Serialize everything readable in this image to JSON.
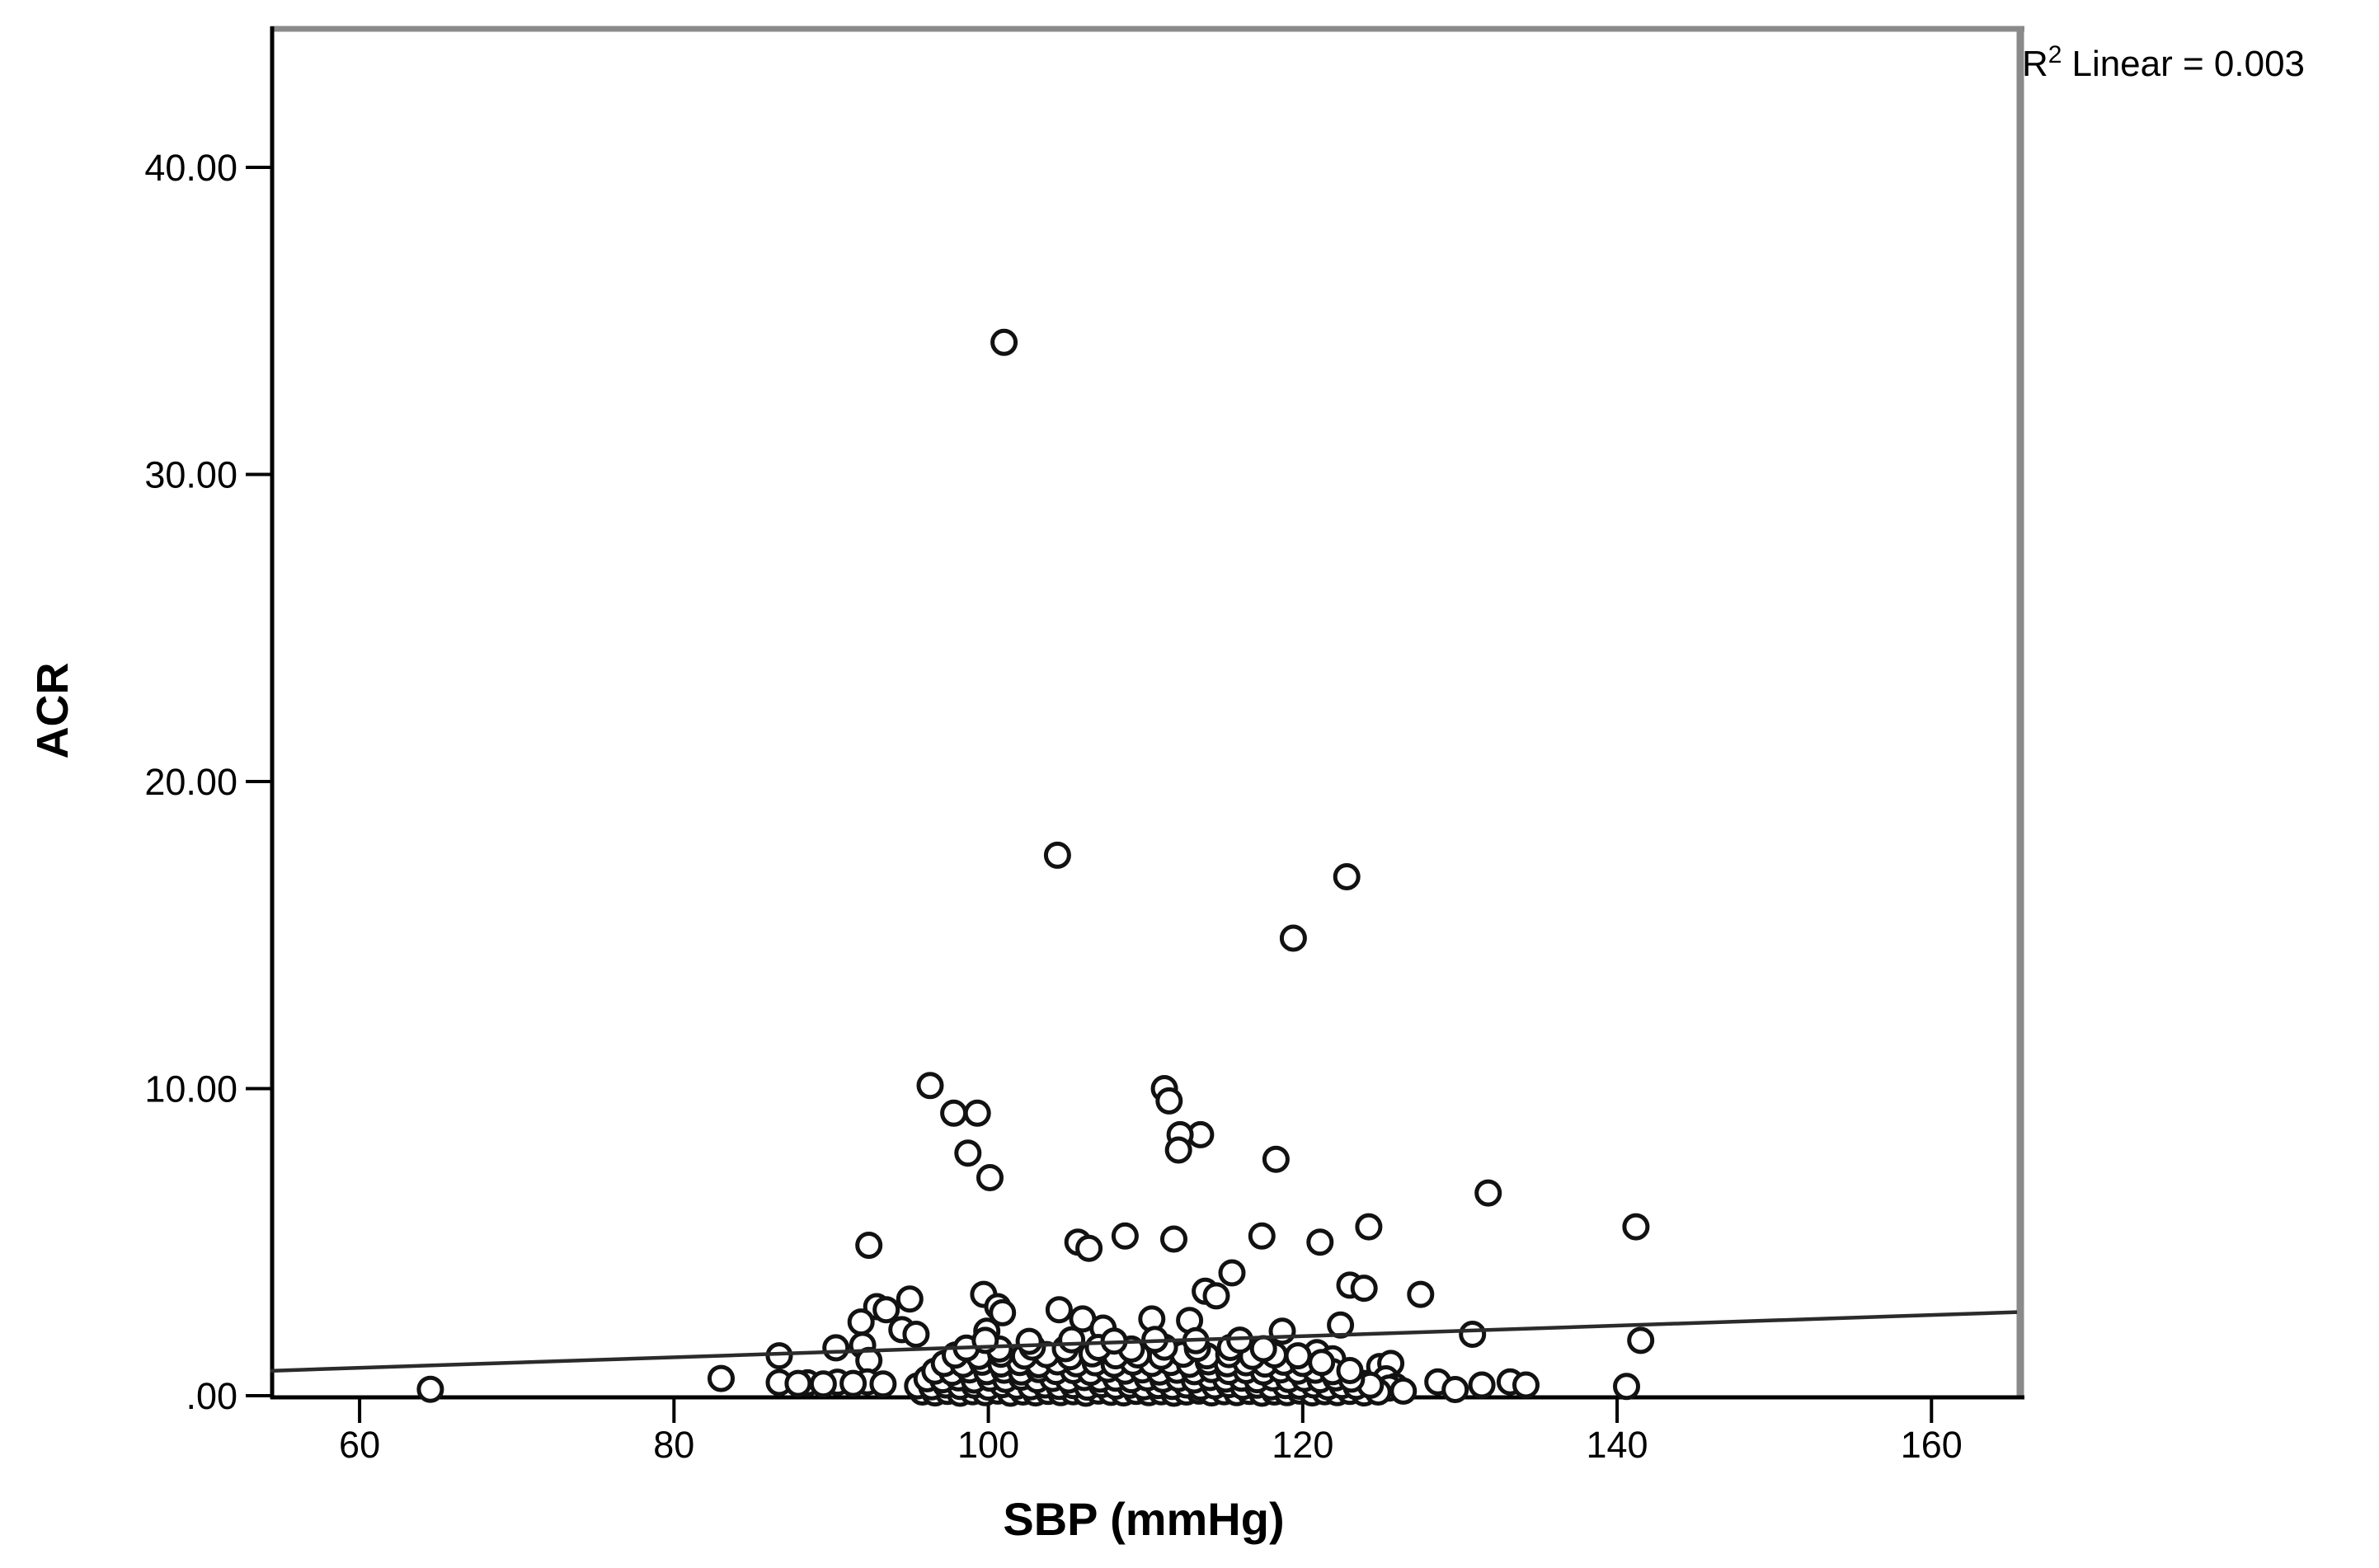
{
  "annotation": {
    "prefix": "R",
    "superscript": "2",
    "rest": "Linear = 0.003"
  },
  "colors": {
    "background": "#ffffff",
    "axis_black": "#000000",
    "frame_gray": "#8a8a8a",
    "marker_stroke": "#121212",
    "marker_fill": "#ffffff",
    "fit_line": "#2b2b2b",
    "text": "#000000"
  },
  "chart_data": {
    "type": "scatter",
    "title": "",
    "xlabel": "SBP (mmHg)",
    "ylabel": "ACR",
    "x_ticks": [
      60,
      80,
      100,
      120,
      140,
      160
    ],
    "x_tick_labels": [
      "60",
      "80",
      "100",
      "120",
      "140",
      "160"
    ],
    "y_ticks": [
      0,
      10,
      20,
      30,
      40
    ],
    "y_tick_labels": [
      ".00",
      "10.00",
      "20.00",
      "30.00",
      "40.00"
    ],
    "xlim": [
      54.33,
      165.44
    ],
    "ylim": [
      0,
      44.59
    ],
    "grid": false,
    "legend": "none",
    "r2_linear": 0.003,
    "fit_line": {
      "x1": 54.33,
      "y1": 0.81,
      "x2": 165.44,
      "y2": 2.72
    },
    "marker": {
      "shape": "open-circle",
      "radius_px": 14,
      "stroke_px": 5
    },
    "points": [
      [
        101.0,
        34.3
      ],
      [
        104.4,
        17.6
      ],
      [
        122.8,
        16.9
      ],
      [
        119.4,
        14.9
      ],
      [
        96.3,
        10.1
      ],
      [
        111.2,
        10.0
      ],
      [
        111.5,
        9.6
      ],
      [
        99.3,
        9.2
      ],
      [
        97.8,
        9.2
      ],
      [
        113.5,
        8.5
      ],
      [
        112.2,
        8.5
      ],
      [
        112.1,
        8.0
      ],
      [
        98.7,
        7.9
      ],
      [
        118.3,
        7.7
      ],
      [
        100.1,
        7.1
      ],
      [
        131.8,
        6.6
      ],
      [
        124.2,
        5.5
      ],
      [
        141.2,
        5.5
      ],
      [
        108.7,
        5.2
      ],
      [
        117.4,
        5.2
      ],
      [
        111.8,
        5.1
      ],
      [
        105.7,
        5.0
      ],
      [
        121.1,
        5.0
      ],
      [
        92.4,
        4.9
      ],
      [
        106.4,
        4.8
      ],
      [
        115.5,
        4.0
      ],
      [
        123.0,
        3.6
      ],
      [
        123.9,
        3.5
      ],
      [
        113.8,
        3.4
      ],
      [
        127.5,
        3.3
      ],
      [
        99.7,
        3.3
      ],
      [
        114.5,
        3.25
      ],
      [
        95.0,
        3.15
      ],
      [
        92.9,
        2.9
      ],
      [
        100.6,
        2.9
      ],
      [
        104.5,
        2.8
      ],
      [
        93.5,
        2.8
      ],
      [
        100.9,
        2.7
      ],
      [
        106.0,
        2.5
      ],
      [
        110.4,
        2.5
      ],
      [
        112.8,
        2.45
      ],
      [
        91.9,
        2.4
      ],
      [
        122.4,
        2.3
      ],
      [
        107.3,
        2.2
      ],
      [
        94.5,
        2.15
      ],
      [
        118.7,
        2.1
      ],
      [
        99.9,
        2.1
      ],
      [
        95.4,
        2.0
      ],
      [
        130.8,
        2.0
      ],
      [
        141.5,
        1.8
      ],
      [
        92.0,
        1.64
      ],
      [
        90.3,
        1.56
      ],
      [
        120.9,
        1.4
      ],
      [
        86.7,
        1.3
      ],
      [
        121.9,
        1.2
      ],
      [
        92.4,
        1.15
      ],
      [
        124.9,
        0.95
      ],
      [
        125.6,
        1.05
      ],
      [
        122.7,
        0.7
      ],
      [
        83.0,
        0.56
      ],
      [
        125.3,
        0.55
      ],
      [
        128.6,
        0.45
      ],
      [
        133.2,
        0.45
      ],
      [
        92.3,
        0.45
      ],
      [
        90.4,
        0.44
      ],
      [
        86.7,
        0.43
      ],
      [
        88.5,
        0.42
      ],
      [
        91.4,
        0.4
      ],
      [
        87.9,
        0.4
      ],
      [
        123.9,
        0.4
      ],
      [
        93.3,
        0.38
      ],
      [
        89.5,
        0.38
      ],
      [
        131.4,
        0.35
      ],
      [
        134.2,
        0.35
      ],
      [
        140.6,
        0.3
      ],
      [
        125.9,
        0.3
      ],
      [
        125.5,
        0.25
      ],
      [
        64.5,
        0.21
      ],
      [
        129.7,
        0.2
      ],
      [
        126.4,
        0.15
      ],
      [
        95.8,
        0.12
      ],
      [
        96.6,
        0.09
      ],
      [
        97.4,
        0.14
      ],
      [
        98.2,
        0.08
      ],
      [
        99.0,
        0.13
      ],
      [
        99.8,
        0.1
      ],
      [
        100.6,
        0.15
      ],
      [
        101.4,
        0.08
      ],
      [
        102.2,
        0.12
      ],
      [
        103.0,
        0.09
      ],
      [
        103.8,
        0.14
      ],
      [
        104.6,
        0.1
      ],
      [
        105.4,
        0.13
      ],
      [
        106.2,
        0.08
      ],
      [
        107.0,
        0.15
      ],
      [
        107.8,
        0.11
      ],
      [
        108.6,
        0.09
      ],
      [
        109.4,
        0.14
      ],
      [
        110.2,
        0.1
      ],
      [
        111.0,
        0.13
      ],
      [
        111.8,
        0.08
      ],
      [
        112.6,
        0.12
      ],
      [
        113.4,
        0.15
      ],
      [
        114.2,
        0.09
      ],
      [
        115.0,
        0.13
      ],
      [
        115.8,
        0.1
      ],
      [
        116.6,
        0.14
      ],
      [
        117.4,
        0.08
      ],
      [
        118.2,
        0.12
      ],
      [
        119.0,
        0.1
      ],
      [
        119.8,
        0.15
      ],
      [
        120.6,
        0.09
      ],
      [
        121.4,
        0.13
      ],
      [
        122.2,
        0.1
      ],
      [
        123.0,
        0.14
      ],
      [
        123.9,
        0.09
      ],
      [
        124.8,
        0.12
      ],
      [
        95.5,
        0.32
      ],
      [
        96.4,
        0.29
      ],
      [
        97.3,
        0.35
      ],
      [
        98.2,
        0.3
      ],
      [
        99.1,
        0.34
      ],
      [
        100.0,
        0.28
      ],
      [
        100.9,
        0.36
      ],
      [
        101.8,
        0.31
      ],
      [
        102.7,
        0.29
      ],
      [
        103.6,
        0.35
      ],
      [
        104.5,
        0.3
      ],
      [
        105.4,
        0.33
      ],
      [
        106.3,
        0.28
      ],
      [
        107.2,
        0.36
      ],
      [
        108.1,
        0.31
      ],
      [
        109.0,
        0.34
      ],
      [
        109.9,
        0.29
      ],
      [
        110.8,
        0.33
      ],
      [
        111.7,
        0.3
      ],
      [
        112.6,
        0.35
      ],
      [
        113.5,
        0.28
      ],
      [
        114.4,
        0.32
      ],
      [
        115.3,
        0.36
      ],
      [
        116.2,
        0.3
      ],
      [
        117.1,
        0.34
      ],
      [
        118.0,
        0.29
      ],
      [
        118.9,
        0.33
      ],
      [
        119.8,
        0.31
      ],
      [
        120.7,
        0.35
      ],
      [
        121.6,
        0.29
      ],
      [
        122.5,
        0.33
      ],
      [
        123.4,
        0.3
      ],
      [
        124.3,
        0.34
      ],
      [
        96.1,
        0.55
      ],
      [
        97.1,
        0.52
      ],
      [
        98.1,
        0.58
      ],
      [
        99.1,
        0.51
      ],
      [
        100.1,
        0.57
      ],
      [
        101.1,
        0.53
      ],
      [
        102.1,
        0.6
      ],
      [
        103.1,
        0.52
      ],
      [
        104.1,
        0.56
      ],
      [
        105.1,
        0.51
      ],
      [
        106.1,
        0.59
      ],
      [
        107.1,
        0.54
      ],
      [
        108.1,
        0.57
      ],
      [
        109.1,
        0.52
      ],
      [
        110.1,
        0.58
      ],
      [
        111.1,
        0.53
      ],
      [
        112.1,
        0.56
      ],
      [
        113.1,
        0.51
      ],
      [
        114.1,
        0.59
      ],
      [
        115.1,
        0.54
      ],
      [
        116.1,
        0.57
      ],
      [
        117.1,
        0.52
      ],
      [
        118.1,
        0.58
      ],
      [
        119.1,
        0.53
      ],
      [
        120.1,
        0.56
      ],
      [
        121.1,
        0.52
      ],
      [
        122.1,
        0.58
      ],
      [
        123.1,
        0.54
      ],
      [
        96.6,
        0.8
      ],
      [
        97.7,
        0.76
      ],
      [
        98.8,
        0.84
      ],
      [
        99.9,
        0.78
      ],
      [
        101.0,
        0.83
      ],
      [
        102.1,
        0.77
      ],
      [
        103.2,
        0.85
      ],
      [
        104.3,
        0.79
      ],
      [
        105.4,
        0.82
      ],
      [
        106.5,
        0.76
      ],
      [
        107.6,
        0.86
      ],
      [
        108.7,
        0.8
      ],
      [
        109.8,
        0.84
      ],
      [
        110.9,
        0.77
      ],
      [
        112.0,
        0.83
      ],
      [
        113.1,
        0.78
      ],
      [
        114.2,
        0.85
      ],
      [
        115.3,
        0.79
      ],
      [
        116.4,
        0.82
      ],
      [
        117.5,
        0.77
      ],
      [
        118.6,
        0.84
      ],
      [
        119.7,
        0.8
      ],
      [
        120.8,
        0.83
      ],
      [
        121.9,
        0.78
      ],
      [
        123.0,
        0.82
      ],
      [
        97.2,
        1.05
      ],
      [
        98.4,
        1.02
      ],
      [
        99.6,
        1.09
      ],
      [
        100.8,
        1.03
      ],
      [
        102.0,
        1.08
      ],
      [
        103.2,
        1.01
      ],
      [
        104.4,
        1.1
      ],
      [
        105.6,
        1.04
      ],
      [
        106.8,
        1.07
      ],
      [
        108.0,
        1.02
      ],
      [
        109.2,
        1.09
      ],
      [
        110.4,
        1.05
      ],
      [
        111.6,
        1.08
      ],
      [
        112.8,
        1.02
      ],
      [
        114.0,
        1.1
      ],
      [
        115.2,
        1.04
      ],
      [
        116.4,
        1.07
      ],
      [
        117.6,
        1.03
      ],
      [
        118.8,
        1.09
      ],
      [
        120.0,
        1.05
      ],
      [
        121.2,
        1.08
      ],
      [
        97.9,
        1.32
      ],
      [
        99.4,
        1.28
      ],
      [
        100.8,
        1.35
      ],
      [
        102.3,
        1.29
      ],
      [
        103.7,
        1.34
      ],
      [
        105.2,
        1.27
      ],
      [
        106.6,
        1.36
      ],
      [
        108.1,
        1.3
      ],
      [
        109.5,
        1.33
      ],
      [
        111.0,
        1.28
      ],
      [
        112.4,
        1.35
      ],
      [
        113.9,
        1.3
      ],
      [
        115.3,
        1.34
      ],
      [
        116.8,
        1.28
      ],
      [
        118.2,
        1.33
      ],
      [
        119.7,
        1.3
      ],
      [
        98.6,
        1.55
      ],
      [
        100.7,
        1.52
      ],
      [
        102.8,
        1.58
      ],
      [
        104.9,
        1.53
      ],
      [
        107.0,
        1.57
      ],
      [
        109.1,
        1.52
      ],
      [
        111.2,
        1.58
      ],
      [
        113.3,
        1.54
      ],
      [
        115.4,
        1.57
      ],
      [
        117.5,
        1.53
      ],
      [
        99.8,
        1.8
      ],
      [
        102.6,
        1.77
      ],
      [
        105.3,
        1.82
      ],
      [
        108.0,
        1.78
      ],
      [
        110.6,
        1.83
      ],
      [
        113.2,
        1.79
      ],
      [
        116.0,
        1.81
      ]
    ]
  }
}
